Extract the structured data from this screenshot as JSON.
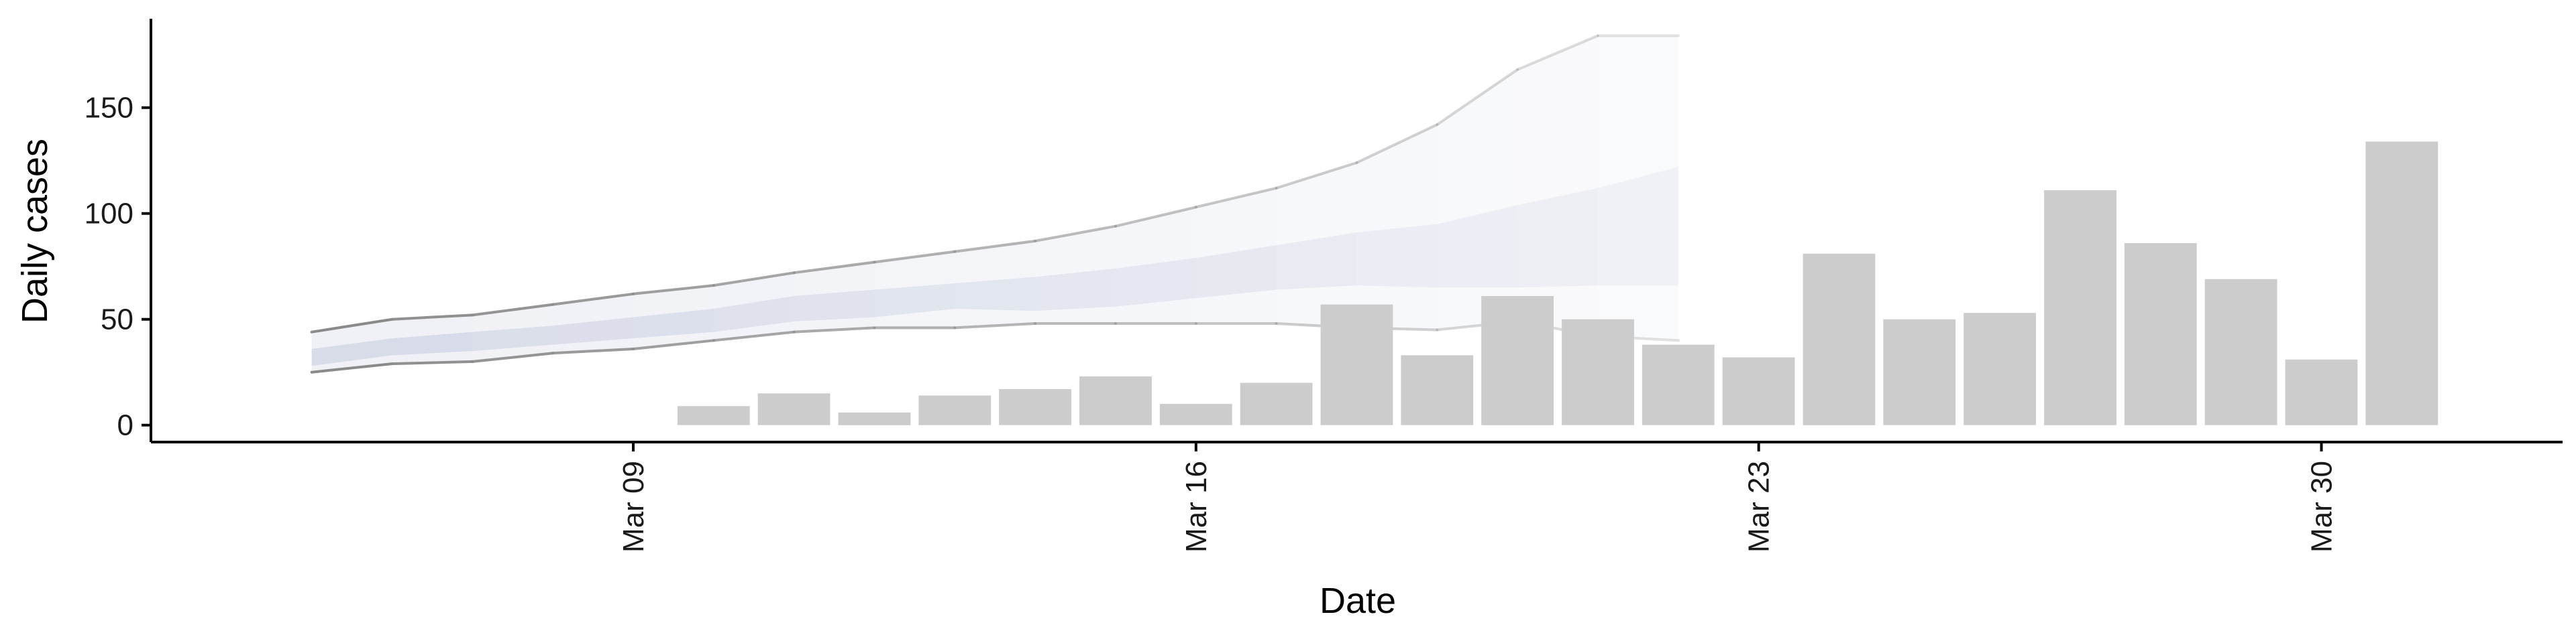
{
  "chart_data": {
    "type": "bar",
    "xlabel": "Date",
    "ylabel": "Daily cases",
    "ylim": [
      -8,
      192
    ],
    "xlim": [
      "2020-03-03",
      "2020-04-02"
    ],
    "grid": false,
    "x_ticks": [
      {
        "date": "2020-03-09",
        "label": "Mar 09"
      },
      {
        "date": "2020-03-16",
        "label": "Mar 16"
      },
      {
        "date": "2020-03-23",
        "label": "Mar 23"
      },
      {
        "date": "2020-03-30",
        "label": "Mar 30"
      }
    ],
    "y_ticks": [
      0,
      50,
      100,
      150
    ],
    "observed_cases": {
      "dates": [
        "2020-03-10",
        "2020-03-11",
        "2020-03-12",
        "2020-03-13",
        "2020-03-14",
        "2020-03-15",
        "2020-03-16",
        "2020-03-17",
        "2020-03-18",
        "2020-03-19",
        "2020-03-20",
        "2020-03-21",
        "2020-03-22",
        "2020-03-23",
        "2020-03-24",
        "2020-03-25",
        "2020-03-26",
        "2020-03-27",
        "2020-03-28",
        "2020-03-29",
        "2020-03-30",
        "2020-03-31"
      ],
      "values": [
        9,
        15,
        6,
        14,
        17,
        23,
        10,
        20,
        57,
        33,
        61,
        50,
        38,
        32,
        81,
        50,
        53,
        111,
        86,
        69,
        31,
        134
      ],
      "color": "#cccccc"
    },
    "forecast": {
      "dates": [
        "2020-03-05",
        "2020-03-06",
        "2020-03-07",
        "2020-03-08",
        "2020-03-09",
        "2020-03-10",
        "2020-03-11",
        "2020-03-12",
        "2020-03-13",
        "2020-03-14",
        "2020-03-15",
        "2020-03-16",
        "2020-03-17",
        "2020-03-18",
        "2020-03-19",
        "2020-03-20",
        "2020-03-21",
        "2020-03-22"
      ],
      "lower_90": [
        25,
        29,
        30,
        34,
        36,
        40,
        44,
        46,
        46,
        48,
        48,
        48,
        48,
        46,
        45,
        49,
        42,
        40
      ],
      "upper_90": [
        44,
        50,
        52,
        57,
        62,
        66,
        72,
        77,
        82,
        87,
        94,
        103,
        112,
        124,
        142,
        168,
        184,
        184
      ],
      "lower_50": [
        28,
        33,
        35,
        38,
        41,
        44,
        49,
        51,
        55,
        54,
        56,
        60,
        64,
        66,
        65,
        65,
        66,
        66
      ],
      "upper_50": [
        36,
        41,
        44,
        47,
        51,
        55,
        61,
        64,
        67,
        70,
        74,
        79,
        85,
        91,
        95,
        104,
        112,
        122
      ],
      "band_color": "#c5cbde",
      "line_color": "#8a8a8a"
    }
  }
}
